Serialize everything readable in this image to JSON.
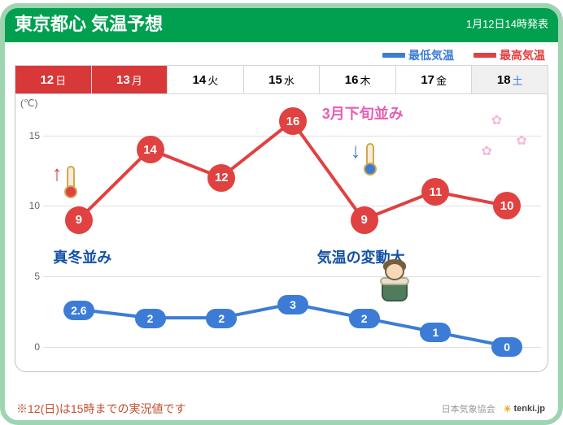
{
  "header": {
    "title": "東京都心 気温予想",
    "issued": "1月12日14時発表"
  },
  "legend": {
    "low": {
      "label": "最低気温",
      "color": "#3c7cd6"
    },
    "high": {
      "label": "最高気温",
      "color": "#e04141"
    }
  },
  "days": [
    {
      "num": "12",
      "w": "日",
      "style": "today"
    },
    {
      "num": "13",
      "w": "月",
      "style": "mon"
    },
    {
      "num": "14",
      "w": "火",
      "style": ""
    },
    {
      "num": "15",
      "w": "水",
      "style": ""
    },
    {
      "num": "16",
      "w": "木",
      "style": ""
    },
    {
      "num": "17",
      "w": "金",
      "style": ""
    },
    {
      "num": "18",
      "w": "土",
      "style": "sat"
    }
  ],
  "chart": {
    "type": "line",
    "y_unit": "(℃)",
    "ylim": [
      -1,
      17
    ],
    "yticks": [
      0,
      5,
      10,
      15
    ],
    "grid_color": "#e0e0e0",
    "high_series": {
      "color": "#e04141",
      "line_width": 4,
      "marker_r": 17,
      "values": [
        9,
        14,
        12,
        16,
        9,
        11,
        10
      ],
      "labels": [
        "9",
        "14",
        "12",
        "16",
        "9",
        "11",
        "10"
      ]
    },
    "low_series": {
      "color": "#3c7cd6",
      "line_width": 4,
      "marker_w": 38,
      "marker_h": 24,
      "values": [
        2.6,
        2,
        2,
        3,
        2,
        1,
        0
      ],
      "labels": [
        "2.6",
        "2",
        "2",
        "3",
        "2",
        "1",
        "0"
      ]
    },
    "annotations": {
      "mafuyu": {
        "text": "真冬並み",
        "kind": "blue",
        "fontsize": 18
      },
      "late_march": {
        "text": "3月下旬並み",
        "kind": "pink",
        "fontsize": 18
      },
      "fluctuation": {
        "text": "気温の変動大",
        "kind": "blue",
        "fontsize": 18
      }
    }
  },
  "footer": {
    "note": "※12(日)は15時までの実況値です",
    "org": "日本気象協会",
    "brand": "tenki.jp"
  }
}
